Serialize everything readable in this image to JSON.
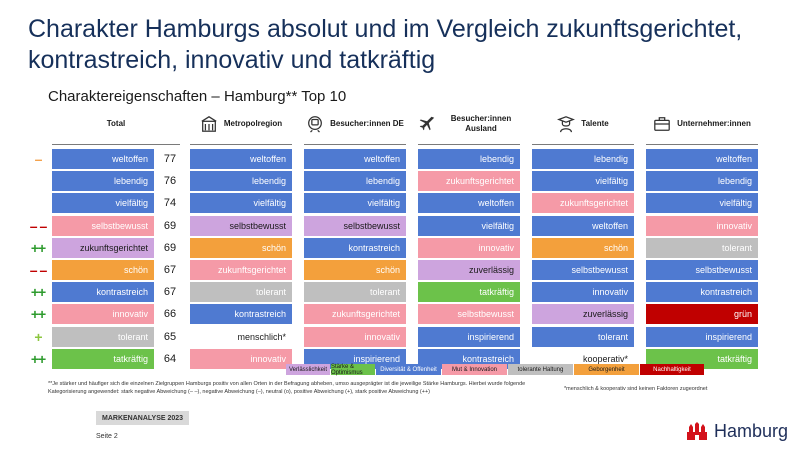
{
  "title": "Charakter Hamburgs absolut und im Vergleich zukunftsgerichtet, kontrastreich, innovativ und tatkräftig",
  "subtitle": "Charaktereigenschaften – Hamburg** Top 10",
  "columns": [
    {
      "label": "Total",
      "icon": ""
    },
    {
      "label": "Metropolregion",
      "icon": "building-icon"
    },
    {
      "label": "Besucher:innen DE",
      "icon": "train-icon"
    },
    {
      "label": "Besucher:innen Ausland",
      "icon": "airplane-icon"
    },
    {
      "label": "Talente",
      "icon": "graduate-icon"
    },
    {
      "label": "Unternehmer:innen",
      "icon": "briefcase-icon"
    }
  ],
  "category_colors": {
    "Verlässlichkeit": "#cda4de",
    "Stärke & Optimismus": "#6cc24a",
    "Diversität & Offenheit": "#4f7ad1",
    "Mut & Innovation": "#f59aa7",
    "tolerante Haltung": "#bfbfbf",
    "Geborgenheit": "#f3a03c",
    "Nachhaltigkeit": "#c00000",
    "Faktor": "#ffffff"
  },
  "total": [
    {
      "label": "weltoffen",
      "value": "77",
      "category": "Diversität & Offenheit",
      "mark": "–",
      "mark_color": "#f4a24c"
    },
    {
      "label": "lebendig",
      "value": "76",
      "category": "Diversität & Offenheit",
      "mark": "",
      "mark_color": ""
    },
    {
      "label": "vielfältig",
      "value": "74",
      "category": "Diversität & Offenheit",
      "mark": "",
      "mark_color": ""
    },
    {
      "label": "selbstbewusst",
      "value": "69",
      "category": "Mut & Innovation",
      "mark": "– –",
      "mark_color": "#c00000"
    },
    {
      "label": "zukunftsgerichtet",
      "value": "69",
      "category": "Verlässlichkeit",
      "mark": "++",
      "mark_color": "#2e9b2e"
    },
    {
      "label": "schön",
      "value": "67",
      "category": "Geborgenheit",
      "mark": "– –",
      "mark_color": "#c00000"
    },
    {
      "label": "kontrastreich",
      "value": "67",
      "category": "Diversität & Offenheit",
      "mark": "++",
      "mark_color": "#2e9b2e"
    },
    {
      "label": "innovativ",
      "value": "66",
      "category": "Mut & Innovation",
      "mark": "++",
      "mark_color": "#2e9b2e"
    },
    {
      "label": "tolerant",
      "value": "65",
      "category": "tolerante Haltung",
      "mark": "+",
      "mark_color": "#8cc63f"
    },
    {
      "label": "tatkräftig",
      "value": "64",
      "category": "Stärke & Optimismus",
      "mark": "++",
      "mark_color": "#2e9b2e"
    }
  ],
  "groups": [
    [
      {
        "label": "weltoffen",
        "category": "Diversität & Offenheit"
      },
      {
        "label": "lebendig",
        "category": "Diversität & Offenheit"
      },
      {
        "label": "vielfältig",
        "category": "Diversität & Offenheit"
      },
      {
        "label": "selbstbewusst",
        "category": "Verlässlichkeit"
      },
      {
        "label": "schön",
        "category": "Geborgenheit"
      },
      {
        "label": "zukunftsgerichtet",
        "category": "Mut & Innovation"
      },
      {
        "label": "tolerant",
        "category": "tolerante Haltung"
      },
      {
        "label": "kontrastreich",
        "category": "Diversität & Offenheit"
      },
      {
        "label": "menschlich*",
        "category": "Faktor"
      },
      {
        "label": "innovativ",
        "category": "Mut & Innovation"
      }
    ],
    [
      {
        "label": "weltoffen",
        "category": "Diversität & Offenheit"
      },
      {
        "label": "lebendig",
        "category": "Diversität & Offenheit"
      },
      {
        "label": "vielfältig",
        "category": "Diversität & Offenheit"
      },
      {
        "label": "selbstbewusst",
        "category": "Verlässlichkeit"
      },
      {
        "label": "kontrastreich",
        "category": "Diversität & Offenheit"
      },
      {
        "label": "schön",
        "category": "Geborgenheit"
      },
      {
        "label": "tolerant",
        "category": "tolerante Haltung"
      },
      {
        "label": "zukunftsgerichtet",
        "category": "Mut & Innovation"
      },
      {
        "label": "innovativ",
        "category": "Mut & Innovation"
      },
      {
        "label": "inspirierend",
        "category": "Diversität & Offenheit"
      }
    ],
    [
      {
        "label": "lebendig",
        "category": "Diversität & Offenheit"
      },
      {
        "label": "zukunftsgerichtet",
        "category": "Mut & Innovation"
      },
      {
        "label": "weltoffen",
        "category": "Diversität & Offenheit"
      },
      {
        "label": "vielfältig",
        "category": "Diversität & Offenheit"
      },
      {
        "label": "innovativ",
        "category": "Mut & Innovation"
      },
      {
        "label": "zuverlässig",
        "category": "Verlässlichkeit"
      },
      {
        "label": "tatkräftig",
        "category": "Stärke & Optimismus"
      },
      {
        "label": "selbstbewusst",
        "category": "Mut & Innovation"
      },
      {
        "label": "inspirierend",
        "category": "Diversität & Offenheit"
      },
      {
        "label": "kontrastreich",
        "category": "Diversität & Offenheit"
      }
    ],
    [
      {
        "label": "lebendig",
        "category": "Diversität & Offenheit"
      },
      {
        "label": "vielfältig",
        "category": "Diversität & Offenheit"
      },
      {
        "label": "zukunftsgerichtet",
        "category": "Mut & Innovation"
      },
      {
        "label": "weltoffen",
        "category": "Diversität & Offenheit"
      },
      {
        "label": "schön",
        "category": "Geborgenheit"
      },
      {
        "label": "selbstbewusst",
        "category": "Diversität & Offenheit"
      },
      {
        "label": "innovativ",
        "category": "Diversität & Offenheit"
      },
      {
        "label": "zuverlässig",
        "category": "Verlässlichkeit"
      },
      {
        "label": "tolerant",
        "category": "Diversität & Offenheit"
      },
      {
        "label": "kooperativ*",
        "category": "Faktor"
      }
    ],
    [
      {
        "label": "weltoffen",
        "category": "Diversität & Offenheit"
      },
      {
        "label": "lebendig",
        "category": "Diversität & Offenheit"
      },
      {
        "label": "vielfältig",
        "category": "Diversität & Offenheit"
      },
      {
        "label": "innovativ",
        "category": "Mut & Innovation"
      },
      {
        "label": "tolerant",
        "category": "tolerante Haltung"
      },
      {
        "label": "selbstbewusst",
        "category": "Diversität & Offenheit"
      },
      {
        "label": "kontrastreich",
        "category": "Diversität & Offenheit"
      },
      {
        "label": "grün",
        "category": "Nachhaltigkeit"
      },
      {
        "label": "inspirierend",
        "category": "Diversität & Offenheit"
      },
      {
        "label": "tatkräftig",
        "category": "Stärke & Optimismus"
      }
    ]
  ],
  "legend": [
    "Verlässlichkeit",
    "Stärke & Optimismus",
    "Diversität & Offenheit",
    "Mut & Innovation",
    "tolerante Haltung",
    "Geborgenheit",
    "Nachhaltigkeit"
  ],
  "footnote": "**Je stärker und häufiger sich die einzelnen Zielgruppen Hamburgs positiv von allen Orten in der Befragung abheben, umso ausgeprägter ist die jeweilige Stärke Hamburgs. Hierbei wurde folgende Kategorisierung angewendet: stark negative Abweichung (– –), negative Abweichung (–), neutral (o), positive Abweichung (+), stark positive Abweichung (++)",
  "footnote2": "*menschlich & kooperativ sind keinen Faktoren zugeordnet",
  "badge": "MARKENANALYSE 2023",
  "page": "Seite 2",
  "brand": "Hamburg"
}
